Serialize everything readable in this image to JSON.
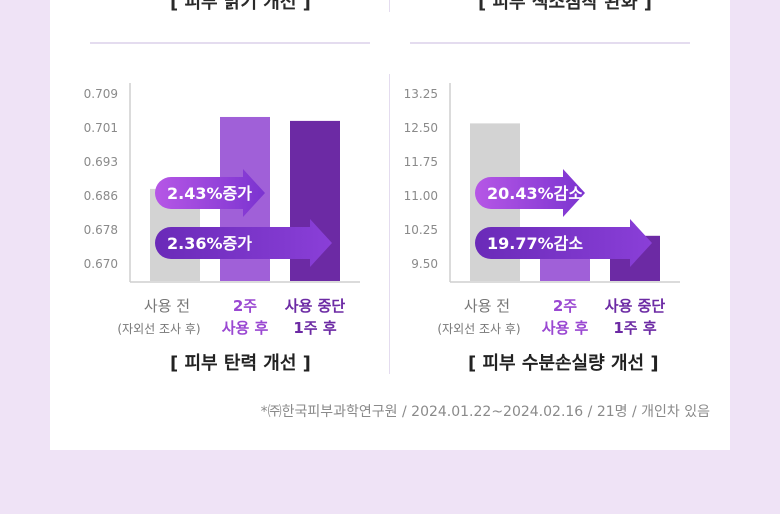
{
  "top_captions": {
    "left": "[ 피부 맑기 개선 ]",
    "right": "[ 피부 색소침착 완화 ]"
  },
  "chart_data": [
    {
      "type": "bar",
      "title": "[ 피부 탄력 개선 ]",
      "y_ticks": [
        "0.709",
        "0.701",
        "0.693",
        "0.686",
        "0.678",
        "0.670"
      ],
      "ylim": [
        0.67,
        0.709
      ],
      "categories": [
        {
          "line1": "사용 전",
          "line2": "(자외선 조사 후)"
        },
        {
          "line1": "2주",
          "line2": "사용 후"
        },
        {
          "line1": "사용 중단",
          "line2": "1주 후"
        }
      ],
      "values": [
        0.687,
        0.7035,
        0.7026
      ],
      "colors": [
        "#d3d3d3",
        "#a060d8",
        "#6c2aa4"
      ],
      "label_colors": [
        "#777777",
        "#9a48d2",
        "#6c2aa4"
      ],
      "annotations": [
        {
          "text": "2.43%증가",
          "from": 0,
          "to": 1
        },
        {
          "text": "2.36%증가",
          "from": 0,
          "to": 2
        }
      ]
    },
    {
      "type": "bar",
      "title": "[ 피부 수분손실량 개선 ]",
      "y_ticks": [
        "13.25",
        "12.50",
        "11.75",
        "11.00",
        "10.25",
        "9.50"
      ],
      "ylim": [
        9.5,
        13.25
      ],
      "categories": [
        {
          "line1": "사용 전",
          "line2": "(자외선 조사 후)"
        },
        {
          "line1": "2주",
          "line2": "사용 후"
        },
        {
          "line1": "사용 중단",
          "line2": "1주 후"
        }
      ],
      "values": [
        12.58,
        10.0,
        10.1
      ],
      "colors": [
        "#d3d3d3",
        "#a060d8",
        "#6c2aa4"
      ],
      "label_colors": [
        "#777777",
        "#9a48d2",
        "#6c2aa4"
      ],
      "annotations": [
        {
          "text": "20.43%감소",
          "from": 0,
          "to": 1
        },
        {
          "text": "19.77%감소",
          "from": 0,
          "to": 2
        }
      ]
    }
  ],
  "source_note": "*㈜한국피부과학연구원 / 2024.01.22~2024.02.16 / 21명 / 개인차 있음"
}
